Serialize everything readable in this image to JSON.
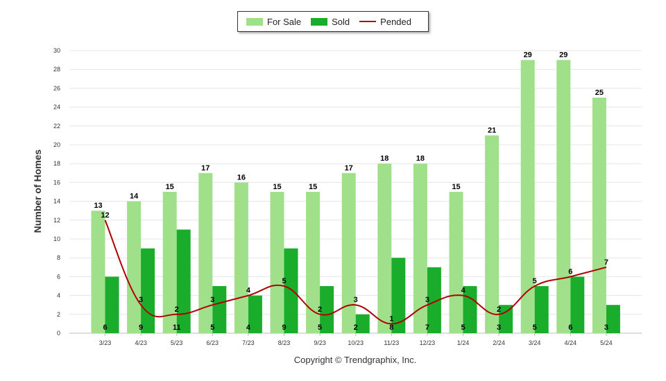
{
  "chart_data": {
    "type": "bar",
    "title": "",
    "xlabel": "",
    "ylabel": "Number of Homes",
    "ylim": [
      0,
      30
    ],
    "yticks": [
      0,
      2,
      4,
      6,
      8,
      10,
      12,
      14,
      16,
      18,
      20,
      22,
      24,
      26,
      28,
      30
    ],
    "categories": [
      "3/23",
      "4/23",
      "5/23",
      "6/23",
      "7/23",
      "8/23",
      "9/23",
      "10/23",
      "11/23",
      "12/23",
      "1/24",
      "2/24",
      "3/24",
      "4/24",
      "5/24"
    ],
    "series": [
      {
        "name": "For Sale",
        "kind": "bar",
        "color": "#a0e08a",
        "values": [
          13,
          14,
          15,
          17,
          16,
          15,
          15,
          17,
          18,
          18,
          15,
          21,
          29,
          29,
          25
        ]
      },
      {
        "name": "Sold",
        "kind": "bar",
        "color": "#1aad2c",
        "values": [
          6,
          9,
          11,
          5,
          4,
          9,
          5,
          2,
          8,
          7,
          5,
          3,
          5,
          6,
          3
        ]
      },
      {
        "name": "Pended",
        "kind": "line",
        "color": "#b00000",
        "values": [
          12,
          3,
          2,
          3,
          4,
          5,
          2,
          3,
          1,
          3,
          4,
          2,
          5,
          6,
          7
        ]
      }
    ],
    "legend_position": "top-center"
  },
  "copyright": "Copyright © Trendgraphix, Inc."
}
